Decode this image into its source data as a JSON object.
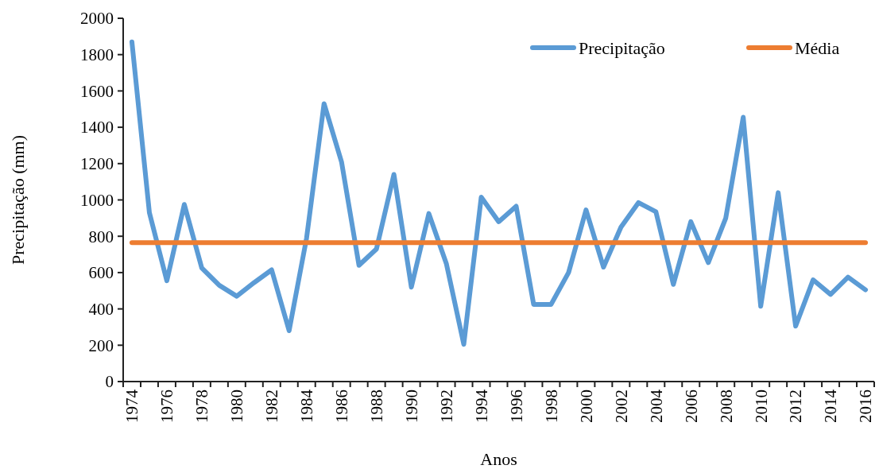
{
  "chart_data": {
    "type": "line",
    "xlabel": "Anos",
    "ylabel": "Precipitação (mm)",
    "categories": [
      "1974",
      null,
      "1976",
      null,
      "1978",
      null,
      "1980",
      null,
      "1982",
      null,
      "1984",
      null,
      "1986",
      null,
      "1988",
      null,
      "1990",
      null,
      "1992",
      null,
      "1994",
      null,
      "1996",
      null,
      "1998",
      null,
      "2000",
      null,
      "2002",
      null,
      "2004",
      null,
      "2006",
      null,
      "2008",
      null,
      "2010",
      null,
      "2012",
      null,
      "2014",
      null,
      "2016"
    ],
    "series": [
      {
        "name": "Precipitação",
        "color": "#5b9bd5",
        "values": [
          1870,
          930,
          555,
          975,
          625,
          530,
          470,
          545,
          615,
          280,
          790,
          1530,
          1210,
          640,
          730,
          1140,
          520,
          925,
          650,
          205,
          1015,
          880,
          965,
          425,
          425,
          600,
          945,
          630,
          850,
          985,
          935,
          535,
          880,
          655,
          900,
          1455,
          415,
          1040,
          305,
          560,
          480,
          575,
          505
        ]
      },
      {
        "name": "Média",
        "color": "#ed7d31",
        "values": [
          765,
          765,
          765,
          765,
          765,
          765,
          765,
          765,
          765,
          765,
          765,
          765,
          765,
          765,
          765,
          765,
          765,
          765,
          765,
          765,
          765,
          765,
          765,
          765,
          765,
          765,
          765,
          765,
          765,
          765,
          765,
          765,
          765,
          765,
          765,
          765,
          765,
          765,
          765,
          765,
          765,
          765,
          765
        ]
      }
    ],
    "ylim": [
      0,
      2000
    ],
    "yticks": [
      0,
      200,
      400,
      600,
      800,
      1000,
      1200,
      1400,
      1600,
      1800,
      2000
    ],
    "grid": false,
    "legend": "top right",
    "marker": "none",
    "line_style": "solid"
  }
}
